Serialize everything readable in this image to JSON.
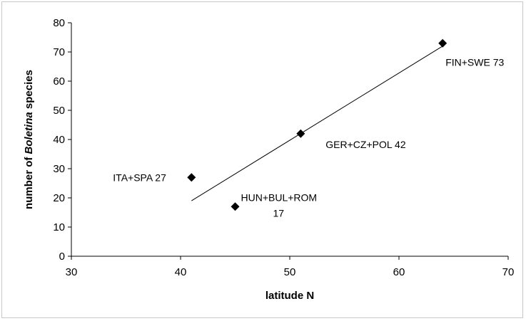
{
  "chart_data": {
    "type": "scatter",
    "title": "",
    "xlabel": "latitude N",
    "ylabel_parts": [
      "number of ",
      "Boletina",
      " species"
    ],
    "xlim": [
      30,
      70
    ],
    "ylim": [
      0,
      80
    ],
    "x_ticks": [
      "30",
      "40",
      "50",
      "60",
      "70"
    ],
    "y_ticks": [
      "0",
      "10",
      "20",
      "30",
      "40",
      "50",
      "60",
      "70",
      "80"
    ],
    "points": [
      {
        "x": 41,
        "y": 27,
        "label": "ITA+SPA 27"
      },
      {
        "x": 45,
        "y": 17,
        "label_lines": [
          "HUN+BUL+ROM",
          "17"
        ]
      },
      {
        "x": 51,
        "y": 42,
        "label": "GER+CZ+POL 42"
      },
      {
        "x": 64,
        "y": 73,
        "label": "FIN+SWE 73"
      }
    ],
    "trendline": {
      "x": [
        41,
        64
      ],
      "y": [
        19,
        72
      ]
    },
    "marker_color": "#000000",
    "line_color": "#000000",
    "grid": false,
    "legend": "none"
  }
}
